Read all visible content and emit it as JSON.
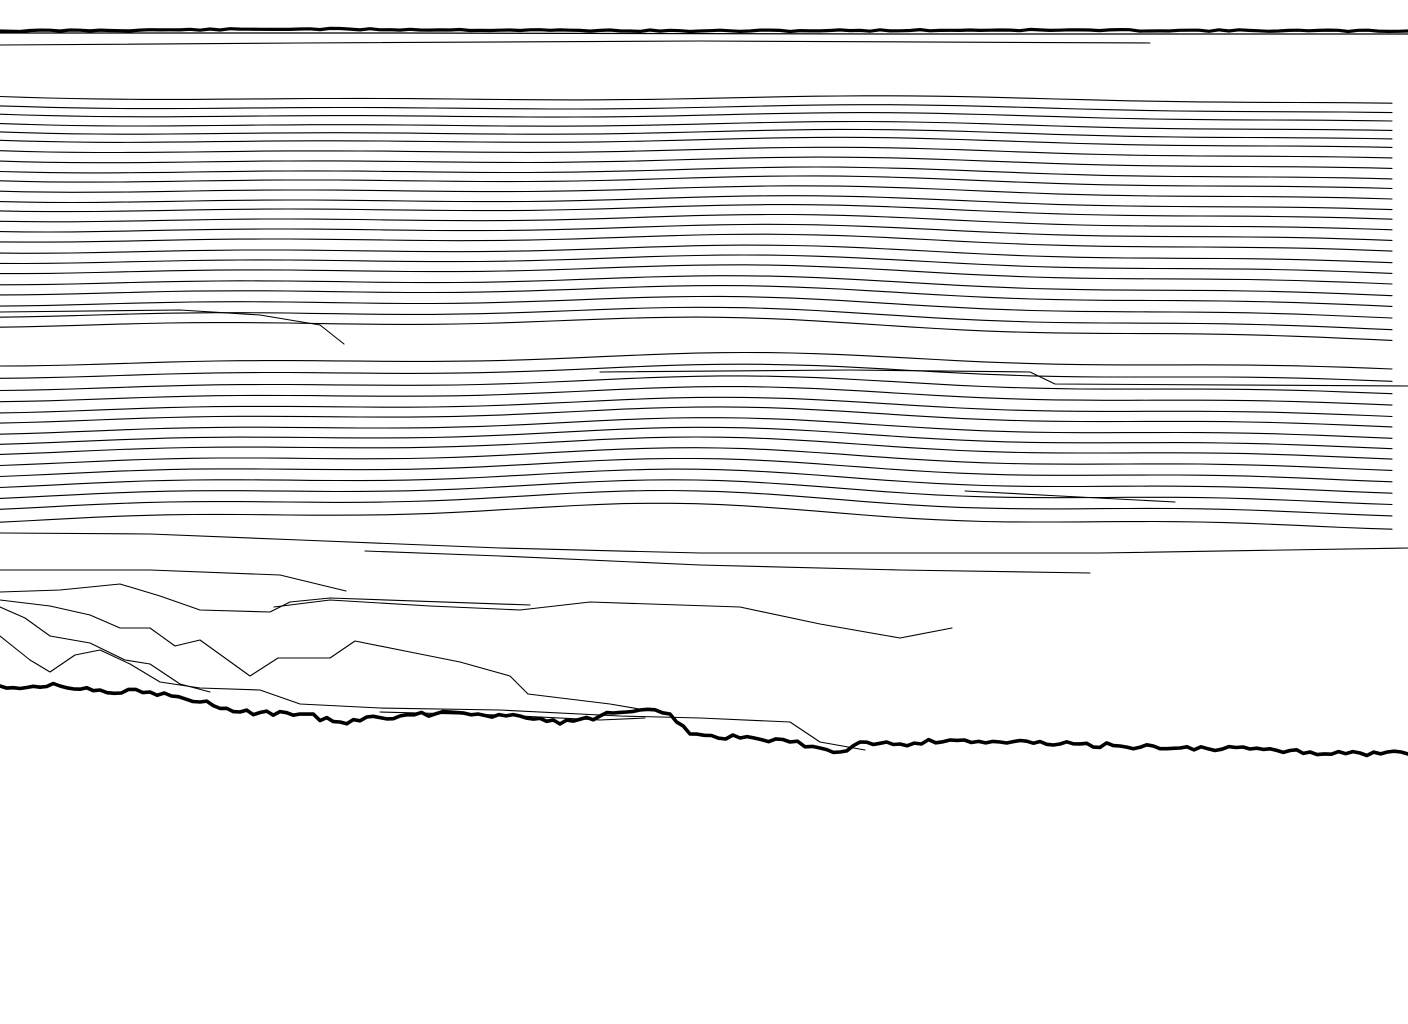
{
  "drawing": {
    "background_color": "#ffffff",
    "line_color": "#000000",
    "boundary_top": {
      "label": ""
    },
    "boundary_bottom": {
      "label": ""
    }
  }
}
